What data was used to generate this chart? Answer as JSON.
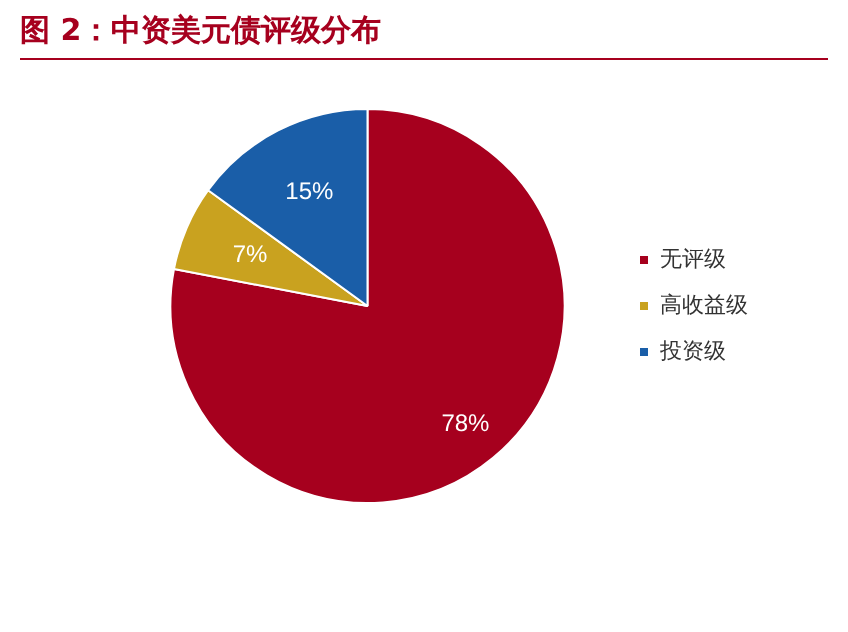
{
  "chart_data": {
    "type": "pie",
    "title": "图 2：中资美元债评级分布",
    "categories": [
      "无评级",
      "高收益级",
      "投资级"
    ],
    "values": [
      78,
      7,
      15
    ],
    "colors": [
      "#a6001e",
      "#c9a21f",
      "#1a5ea8"
    ],
    "value_labels": [
      "78%",
      "7%",
      "15%"
    ],
    "legend": "right"
  }
}
